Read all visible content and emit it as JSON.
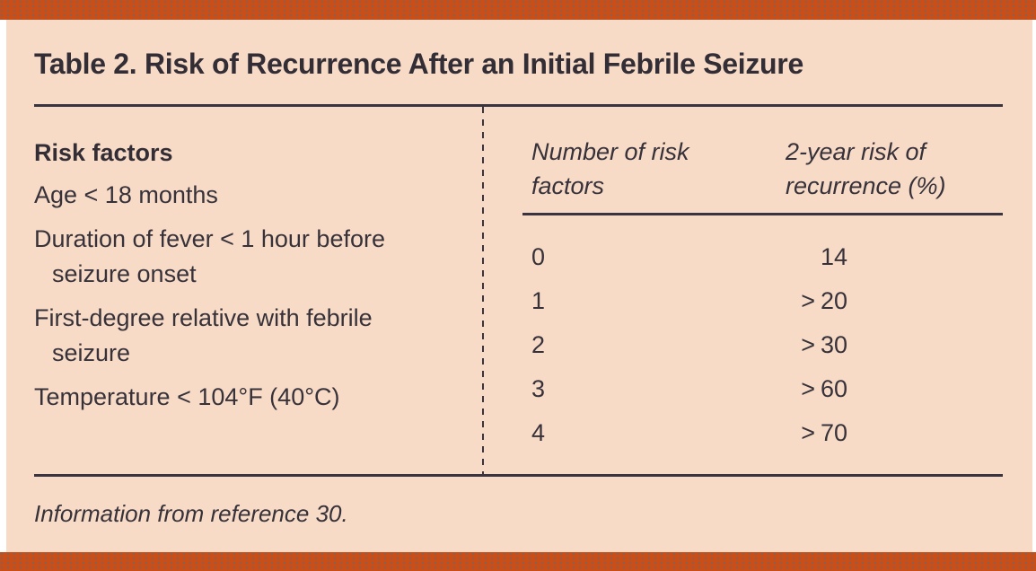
{
  "title": "Table 2. Risk of Recurrence After an Initial Febrile Seizure",
  "colors": {
    "accent_orange": "#ca4e18",
    "panel_peach": "#f8dbc7",
    "text_dark": "#37323a"
  },
  "risk_factors": {
    "heading": "Risk factors",
    "items": [
      {
        "line1": "Age < 18 months",
        "line2": ""
      },
      {
        "line1": "Duration of fever < 1 hour before",
        "line2": "seizure onset"
      },
      {
        "line1": "First-degree relative with febrile",
        "line2": "seizure"
      },
      {
        "line1": "Temperature < 104°F (40°C)",
        "line2": ""
      }
    ]
  },
  "recurrence_table": {
    "col1_header_line1": "Number of risk",
    "col1_header_line2": "factors",
    "col2_header_line1": "2-year risk of",
    "col2_header_line2": "recurrence (%)",
    "rows": [
      {
        "factors": "0",
        "risk_prefix": "",
        "risk_value": "14"
      },
      {
        "factors": "1",
        "risk_prefix": ">",
        "risk_value": "20"
      },
      {
        "factors": "2",
        "risk_prefix": ">",
        "risk_value": "30"
      },
      {
        "factors": "3",
        "risk_prefix": ">",
        "risk_value": "60"
      },
      {
        "factors": "4",
        "risk_prefix": ">",
        "risk_value": "70"
      }
    ]
  },
  "footnote": "Information from reference 30."
}
